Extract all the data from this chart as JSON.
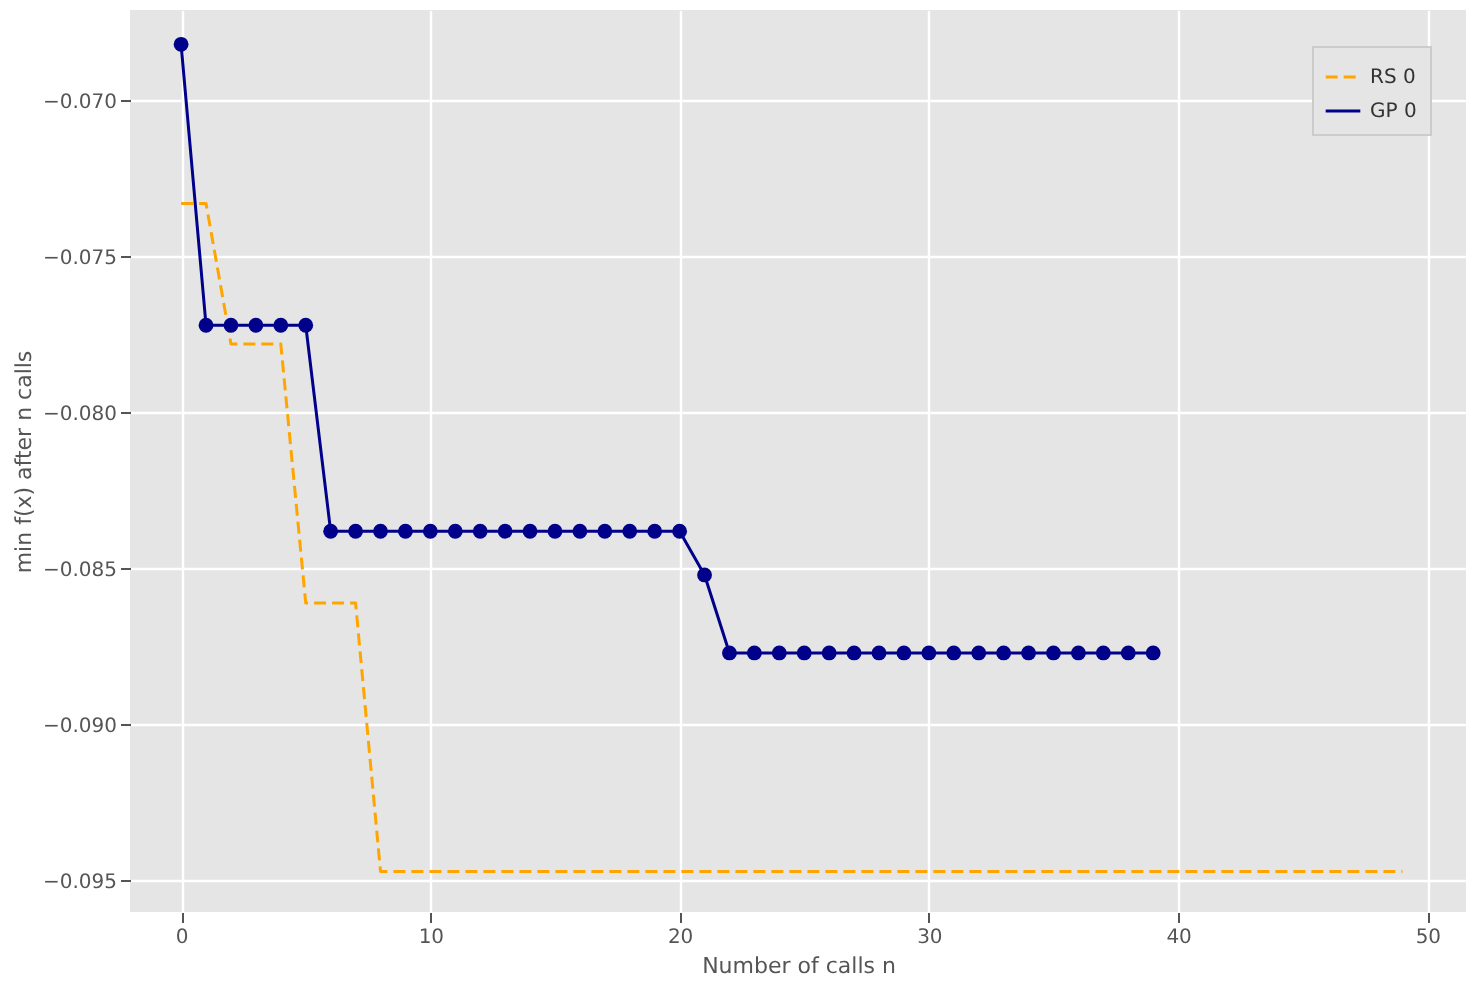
{
  "chart_data": {
    "type": "line",
    "xlabel": "Number of calls n",
    "ylabel": "min f(x) after n calls",
    "xlim": [
      -2.05,
      51.55
    ],
    "xticks": [
      0,
      10,
      20,
      30,
      40,
      50
    ],
    "ylim": [
      -0.096,
      -0.0671
    ],
    "yticks": [
      {
        "value": -0.095,
        "label": "−0.095"
      },
      {
        "value": -0.09,
        "label": "−0.090"
      },
      {
        "value": -0.085,
        "label": "−0.085"
      },
      {
        "value": -0.08,
        "label": "−0.080"
      },
      {
        "value": -0.075,
        "label": "−0.075"
      },
      {
        "value": -0.07,
        "label": "−0.070"
      }
    ],
    "grid": true,
    "legend": "top right",
    "series": [
      {
        "name": "RS 0",
        "color": "#ffa500",
        "line_style": "dashed",
        "marker": "none",
        "x": [
          0,
          1,
          2,
          3,
          4,
          5,
          6,
          7,
          8,
          9,
          10,
          11,
          12,
          13,
          14,
          15,
          16,
          17,
          18,
          19,
          20,
          21,
          22,
          23,
          24,
          25,
          26,
          27,
          28,
          29,
          30,
          31,
          32,
          33,
          34,
          35,
          36,
          37,
          38,
          39,
          40,
          41,
          42,
          43,
          44,
          45,
          46,
          47,
          48,
          49
        ],
        "values": [
          -0.0733,
          -0.0733,
          -0.0778,
          -0.0778,
          -0.0778,
          -0.0861,
          -0.0861,
          -0.0861,
          -0.0947,
          -0.0947,
          -0.0947,
          -0.0947,
          -0.0947,
          -0.0947,
          -0.0947,
          -0.0947,
          -0.0947,
          -0.0947,
          -0.0947,
          -0.0947,
          -0.0947,
          -0.0947,
          -0.0947,
          -0.0947,
          -0.0947,
          -0.0947,
          -0.0947,
          -0.0947,
          -0.0947,
          -0.0947,
          -0.0947,
          -0.0947,
          -0.0947,
          -0.0947,
          -0.0947,
          -0.0947,
          -0.0947,
          -0.0947,
          -0.0947,
          -0.0947,
          -0.0947,
          -0.0947,
          -0.0947,
          -0.0947,
          -0.0947,
          -0.0947,
          -0.0947,
          -0.0947,
          -0.0947,
          -0.0947
        ]
      },
      {
        "name": "GP 0",
        "color": "#00008b",
        "line_style": "solid",
        "marker": "circle",
        "x": [
          0,
          1,
          2,
          3,
          4,
          5,
          6,
          7,
          8,
          9,
          10,
          11,
          12,
          13,
          14,
          15,
          16,
          17,
          18,
          19,
          20,
          21,
          22,
          23,
          24,
          25,
          26,
          27,
          28,
          29,
          30,
          31,
          32,
          33,
          34,
          35,
          36,
          37,
          38,
          39
        ],
        "values": [
          -0.0682,
          -0.0772,
          -0.0772,
          -0.0772,
          -0.0772,
          -0.0772,
          -0.0838,
          -0.0838,
          -0.0838,
          -0.0838,
          -0.0838,
          -0.0838,
          -0.0838,
          -0.0838,
          -0.0838,
          -0.0838,
          -0.0838,
          -0.0838,
          -0.0838,
          -0.0838,
          -0.0838,
          -0.0852,
          -0.0877,
          -0.0877,
          -0.0877,
          -0.0877,
          -0.0877,
          -0.0877,
          -0.0877,
          -0.0877,
          -0.0877,
          -0.0877,
          -0.0877,
          -0.0877,
          -0.0877,
          -0.0877,
          -0.0877,
          -0.0877,
          -0.0877,
          -0.0877
        ]
      }
    ]
  }
}
